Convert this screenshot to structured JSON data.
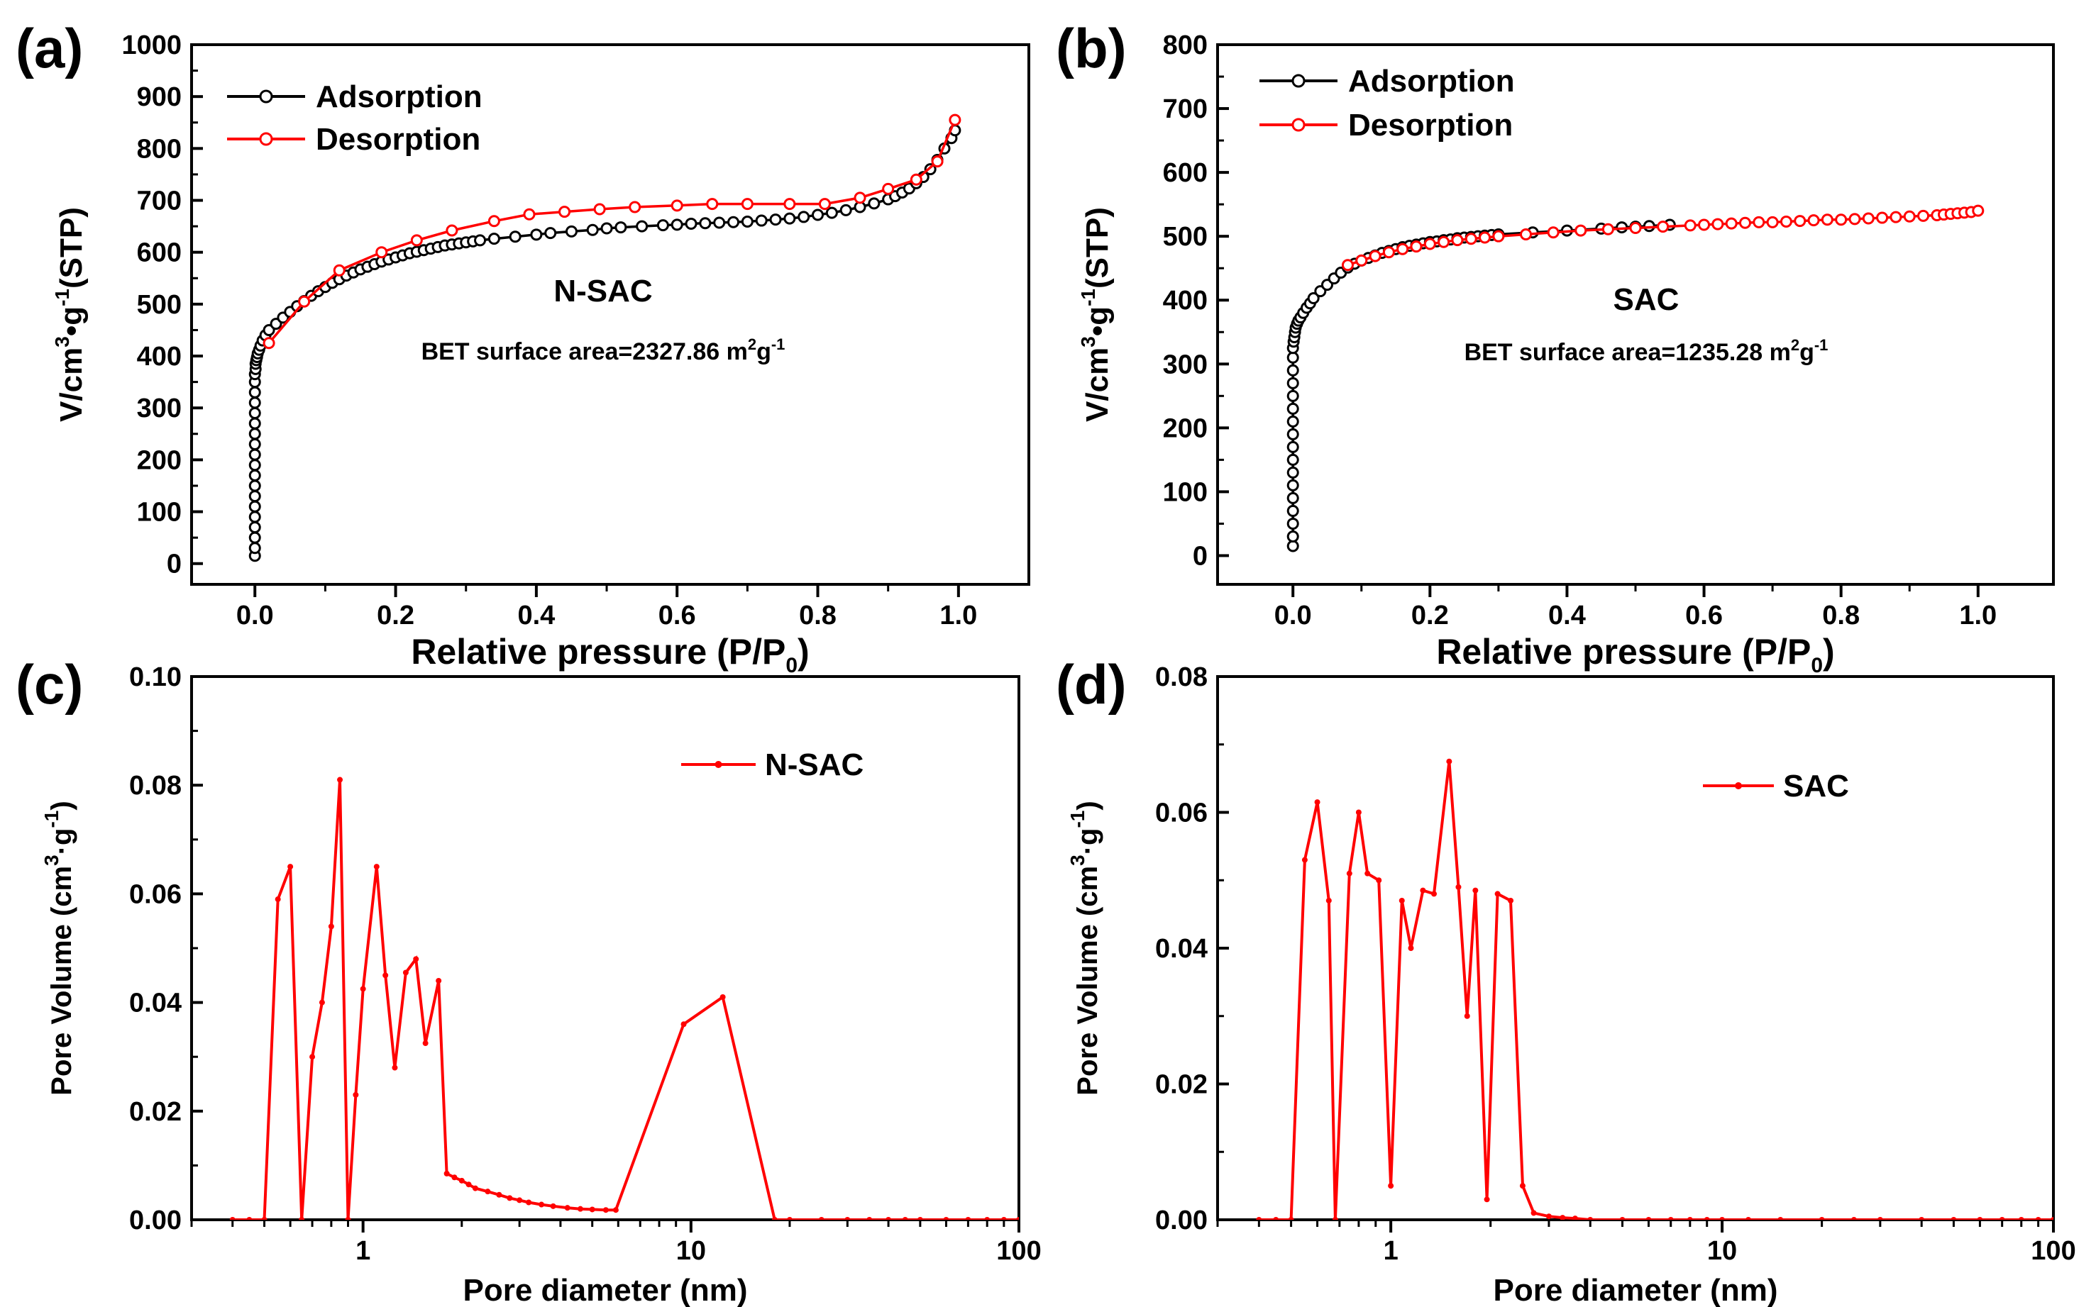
{
  "chart_data": [
    {
      "panel_label": "(a)",
      "type": "line",
      "xlabel": "Relative pressure (P/P",
      "xlabel_sub": "0",
      "xlabel_suffix": ")",
      "ylabel_parts": [
        "V/cm",
        "3",
        "•g",
        "-1",
        "(STP)"
      ],
      "xlim": [
        -0.09,
        1.1
      ],
      "ylim": [
        -40,
        1000
      ],
      "xticks": [
        0.0,
        0.2,
        0.4,
        0.6,
        0.8,
        1.0
      ],
      "xtick_labels": [
        "0.0",
        "0.2",
        "0.4",
        "0.6",
        "0.8",
        "1.0"
      ],
      "yticks": [
        0,
        100,
        200,
        300,
        400,
        500,
        600,
        700,
        800,
        900,
        1000
      ],
      "ytick_labels": [
        "0",
        "100",
        "200",
        "300",
        "400",
        "500",
        "600",
        "700",
        "800",
        "900",
        "1000"
      ],
      "annotation_title": "N-SAC",
      "annotation_text": "BET surface area=2327.86 m",
      "annotation_sup1": "2",
      "annotation_mid": "g",
      "annotation_sup2": "-1",
      "legend": [
        "Adsorption",
        "Desorption"
      ],
      "series": [
        {
          "name": "Adsorption",
          "color": "#000000",
          "x": [
            0.0,
            0.0,
            0.0,
            0.0,
            0.0,
            0.0,
            0.0,
            0.0,
            0.0,
            0.0,
            0.0,
            0.0,
            0.0,
            0.0,
            0.0,
            0.0,
            0.0,
            0.0,
            0.0,
            0.001,
            0.001,
            0.002,
            0.003,
            0.004,
            0.006,
            0.008,
            0.011,
            0.015,
            0.02,
            0.03,
            0.04,
            0.05,
            0.06,
            0.07,
            0.08,
            0.09,
            0.1,
            0.11,
            0.12,
            0.13,
            0.14,
            0.15,
            0.16,
            0.17,
            0.18,
            0.19,
            0.2,
            0.21,
            0.22,
            0.23,
            0.24,
            0.25,
            0.26,
            0.27,
            0.28,
            0.29,
            0.3,
            0.31,
            0.32,
            0.34,
            0.37,
            0.4,
            0.42,
            0.45,
            0.48,
            0.5,
            0.52,
            0.55,
            0.58,
            0.6,
            0.62,
            0.64,
            0.66,
            0.68,
            0.7,
            0.72,
            0.74,
            0.76,
            0.78,
            0.8,
            0.82,
            0.84,
            0.86,
            0.88,
            0.9,
            0.91,
            0.92,
            0.93,
            0.94,
            0.95,
            0.96,
            0.97,
            0.98,
            0.99,
            0.995
          ],
          "y": [
            15,
            30,
            50,
            70,
            90,
            110,
            130,
            150,
            170,
            190,
            210,
            230,
            250,
            270,
            290,
            310,
            330,
            350,
            365,
            375,
            385,
            392,
            398,
            405,
            412,
            420,
            430,
            440,
            450,
            462,
            474,
            485,
            496,
            506,
            516,
            525,
            533,
            541,
            548,
            555,
            561,
            567,
            572,
            577,
            582,
            586,
            590,
            594,
            598,
            601,
            604,
            607,
            610,
            613,
            615,
            617,
            619,
            621,
            623,
            626,
            630,
            634,
            637,
            640,
            643,
            646,
            648,
            650,
            652,
            653,
            655,
            656,
            657,
            658,
            659,
            661,
            663,
            665,
            668,
            672,
            676,
            681,
            687,
            694,
            702,
            708,
            715,
            723,
            733,
            745,
            760,
            778,
            800,
            820,
            835
          ]
        },
        {
          "name": "Desorption",
          "color": "#ff0000",
          "x": [
            0.02,
            0.07,
            0.12,
            0.18,
            0.23,
            0.28,
            0.34,
            0.39,
            0.44,
            0.49,
            0.54,
            0.6,
            0.65,
            0.7,
            0.76,
            0.81,
            0.86,
            0.9,
            0.94,
            0.97,
            0.995
          ],
          "y": [
            425,
            505,
            565,
            600,
            623,
            642,
            660,
            673,
            678,
            683,
            687,
            690,
            693,
            693,
            693,
            693,
            705,
            722,
            740,
            775,
            855
          ]
        }
      ]
    },
    {
      "panel_label": "(b)",
      "type": "line",
      "xlabel": "Relative pressure (P/P",
      "xlabel_sub": "0",
      "xlabel_suffix": ")",
      "ylabel_parts": [
        "V/cm",
        "3",
        "•g",
        "-1",
        "(STP)"
      ],
      "xlim": [
        -0.11,
        1.11
      ],
      "ylim": [
        -45,
        800
      ],
      "xticks": [
        0.0,
        0.2,
        0.4,
        0.6,
        0.8,
        1.0
      ],
      "xtick_labels": [
        "0.0",
        "0.2",
        "0.4",
        "0.6",
        "0.8",
        "1.0"
      ],
      "yticks": [
        0,
        100,
        200,
        300,
        400,
        500,
        600,
        700,
        800
      ],
      "ytick_labels": [
        "0",
        "100",
        "200",
        "300",
        "400",
        "500",
        "600",
        "700",
        "800"
      ],
      "annotation_title": "SAC",
      "annotation_text": "BET surface area=1235.28 m",
      "annotation_sup1": "2",
      "annotation_mid": "g",
      "annotation_sup2": "-1",
      "legend": [
        "Adsorption",
        "Desorption"
      ],
      "series": [
        {
          "name": "Adsorption",
          "color": "#000000",
          "x": [
            0.0,
            0.0,
            0.0,
            0.0,
            0.0,
            0.0,
            0.0,
            0.0,
            0.0,
            0.0,
            0.0,
            0.0,
            0.0,
            0.0,
            0.0,
            0.0,
            0.0,
            0.001,
            0.002,
            0.003,
            0.004,
            0.006,
            0.008,
            0.011,
            0.015,
            0.02,
            0.025,
            0.03,
            0.04,
            0.05,
            0.06,
            0.07,
            0.08,
            0.09,
            0.1,
            0.11,
            0.12,
            0.13,
            0.14,
            0.15,
            0.16,
            0.17,
            0.18,
            0.19,
            0.2,
            0.21,
            0.22,
            0.23,
            0.24,
            0.25,
            0.26,
            0.27,
            0.28,
            0.29,
            0.3,
            0.35,
            0.4,
            0.45,
            0.48,
            0.5,
            0.52,
            0.55
          ],
          "y": [
            15,
            30,
            50,
            70,
            90,
            110,
            130,
            150,
            170,
            190,
            210,
            230,
            250,
            270,
            290,
            310,
            325,
            335,
            342,
            350,
            357,
            363,
            368,
            373,
            380,
            388,
            395,
            403,
            414,
            424,
            434,
            443,
            451,
            457,
            462,
            466,
            470,
            474,
            477,
            480,
            483,
            485,
            487,
            489,
            491,
            492,
            494,
            495,
            497,
            498,
            499,
            500,
            501,
            502,
            503,
            506,
            509,
            512,
            514,
            515,
            516,
            518
          ]
        },
        {
          "name": "Desorption",
          "color": "#ff0000",
          "x": [
            0.08,
            0.1,
            0.12,
            0.14,
            0.16,
            0.18,
            0.2,
            0.22,
            0.24,
            0.26,
            0.28,
            0.3,
            0.34,
            0.38,
            0.42,
            0.46,
            0.5,
            0.54,
            0.58,
            0.6,
            0.62,
            0.64,
            0.66,
            0.68,
            0.7,
            0.72,
            0.74,
            0.76,
            0.78,
            0.8,
            0.82,
            0.84,
            0.86,
            0.88,
            0.9,
            0.92,
            0.94,
            0.95,
            0.96,
            0.97,
            0.98,
            0.99,
            1.0
          ],
          "y": [
            455,
            462,
            469,
            475,
            480,
            484,
            488,
            491,
            494,
            496,
            498,
            500,
            503,
            506,
            509,
            511,
            513,
            515,
            517,
            518,
            519,
            520,
            521,
            522,
            522,
            523,
            524,
            525,
            526,
            526,
            527,
            528,
            529,
            530,
            531,
            532,
            533,
            534,
            535,
            536,
            537,
            538,
            540
          ]
        }
      ]
    },
    {
      "panel_label": "(c)",
      "type": "line",
      "xscale": "log",
      "xlabel": "Pore diameter (nm)",
      "ylabel_parts": [
        "Pore Volume (cm",
        "3",
        "·g",
        "-1",
        ")"
      ],
      "xlim": [
        0.3,
        100
      ],
      "ylim": [
        0,
        0.1
      ],
      "xticks": [
        1,
        10,
        100
      ],
      "xtick_labels": [
        "1",
        "10",
        "100"
      ],
      "yticks": [
        0.0,
        0.02,
        0.04,
        0.06,
        0.08,
        0.1
      ],
      "ytick_labels": [
        "0.00",
        "0.02",
        "0.04",
        "0.06",
        "0.08",
        "0.10"
      ],
      "legend": [
        "N-SAC"
      ],
      "series": [
        {
          "name": "N-SAC",
          "color": "#ff0000",
          "x": [
            0.4,
            0.45,
            0.5,
            0.55,
            0.6,
            0.65,
            0.7,
            0.75,
            0.8,
            0.85,
            0.9,
            0.95,
            1.0,
            1.1,
            1.17,
            1.25,
            1.35,
            1.45,
            1.55,
            1.7,
            1.8,
            1.9,
            2.0,
            2.1,
            2.2,
            2.4,
            2.6,
            2.8,
            3.0,
            3.2,
            3.5,
            3.8,
            4.2,
            4.6,
            5.0,
            5.5,
            5.9,
            9.5,
            12.5,
            18,
            20,
            25,
            30,
            35,
            40,
            45,
            50,
            60,
            70,
            80,
            90,
            100
          ],
          "y": [
            0.0,
            0.0,
            0.0,
            0.059,
            0.065,
            0.0,
            0.03,
            0.04,
            0.054,
            0.081,
            0.0,
            0.023,
            0.0425,
            0.065,
            0.045,
            0.028,
            0.0455,
            0.048,
            0.0325,
            0.044,
            0.0085,
            0.0078,
            0.0072,
            0.0065,
            0.0058,
            0.0052,
            0.0046,
            0.004,
            0.0036,
            0.0032,
            0.0028,
            0.0025,
            0.0022,
            0.002,
            0.0019,
            0.0018,
            0.0018,
            0.036,
            0.041,
            0.0,
            0.0,
            0.0,
            0.0,
            0.0,
            0.0,
            0.0,
            0.0,
            0.0,
            0.0,
            0.0,
            0.0,
            0.0
          ]
        }
      ]
    },
    {
      "panel_label": "(d)",
      "type": "line",
      "xscale": "log",
      "xlabel": "Pore diameter (nm)",
      "ylabel_parts": [
        "Pore Volume (cm",
        "3",
        "·g",
        "-1",
        ")"
      ],
      "xlim": [
        0.3,
        100
      ],
      "ylim": [
        0,
        0.08
      ],
      "xticks": [
        1,
        10,
        100
      ],
      "xtick_labels": [
        "1",
        "10",
        "100"
      ],
      "yticks": [
        0.0,
        0.02,
        0.04,
        0.06,
        0.08
      ],
      "ytick_labels": [
        "0.00",
        "0.02",
        "0.04",
        "0.06",
        "0.08"
      ],
      "legend": [
        "SAC"
      ],
      "series": [
        {
          "name": "SAC",
          "color": "#ff0000",
          "x": [
            0.4,
            0.45,
            0.5,
            0.55,
            0.6,
            0.65,
            0.68,
            0.75,
            0.8,
            0.85,
            0.92,
            1.0,
            1.08,
            1.15,
            1.25,
            1.35,
            1.5,
            1.6,
            1.7,
            1.8,
            1.95,
            2.1,
            2.3,
            2.5,
            2.7,
            3.0,
            3.3,
            3.6,
            4,
            5,
            6,
            7,
            8,
            9,
            10,
            12,
            15,
            20,
            25,
            30,
            40,
            50,
            60,
            70,
            80,
            90,
            100
          ],
          "y": [
            0.0,
            0.0,
            0.0,
            0.053,
            0.0615,
            0.047,
            0.0,
            0.051,
            0.06,
            0.051,
            0.05,
            0.005,
            0.047,
            0.04,
            0.0485,
            0.048,
            0.0675,
            0.049,
            0.03,
            0.0485,
            0.003,
            0.048,
            0.047,
            0.005,
            0.001,
            0.0005,
            0.0003,
            0.0002,
            0.0,
            0.0,
            0.0,
            0.0,
            0.0,
            0.0,
            0.0,
            0.0,
            0.0,
            0.0,
            0.0,
            0.0,
            0.0,
            0.0,
            0.0,
            0.0,
            0.0,
            0.0,
            0.0
          ]
        }
      ]
    }
  ]
}
